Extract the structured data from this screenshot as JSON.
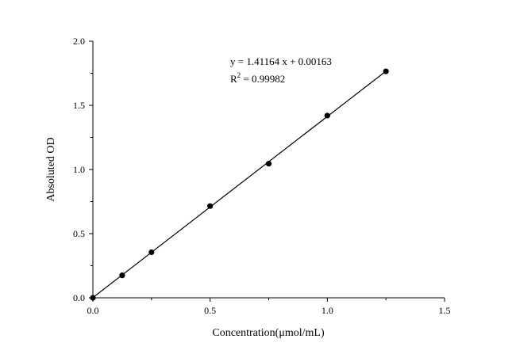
{
  "chart_data": {
    "type": "scatter",
    "xlabel": "Concentration(μmol/mL)",
    "ylabel": "Absoluted OD",
    "xlim": [
      0,
      1.5
    ],
    "ylim": [
      0,
      2.0
    ],
    "x_ticks": [
      "0.0",
      "0.5",
      "1.0",
      "1.5"
    ],
    "y_ticks": [
      "0.0",
      "0.5",
      "1.0",
      "1.5",
      "2.0"
    ],
    "grid": false,
    "points": {
      "x": [
        0,
        0.125,
        0.25,
        0.5,
        0.75,
        1.0,
        1.25
      ],
      "y": [
        0.0,
        0.175,
        0.355,
        0.715,
        1.045,
        1.42,
        1.765
      ]
    },
    "fit": {
      "slope": 1.41164,
      "intercept": 0.00163,
      "equation": "y = 1.41164 x + 0.00163",
      "r2_label": "R",
      "r2_sup": "2",
      "r2_value": " = 0.99982"
    },
    "colors": {
      "axis": "#000000",
      "point": "#000000",
      "line": "#000000"
    }
  }
}
